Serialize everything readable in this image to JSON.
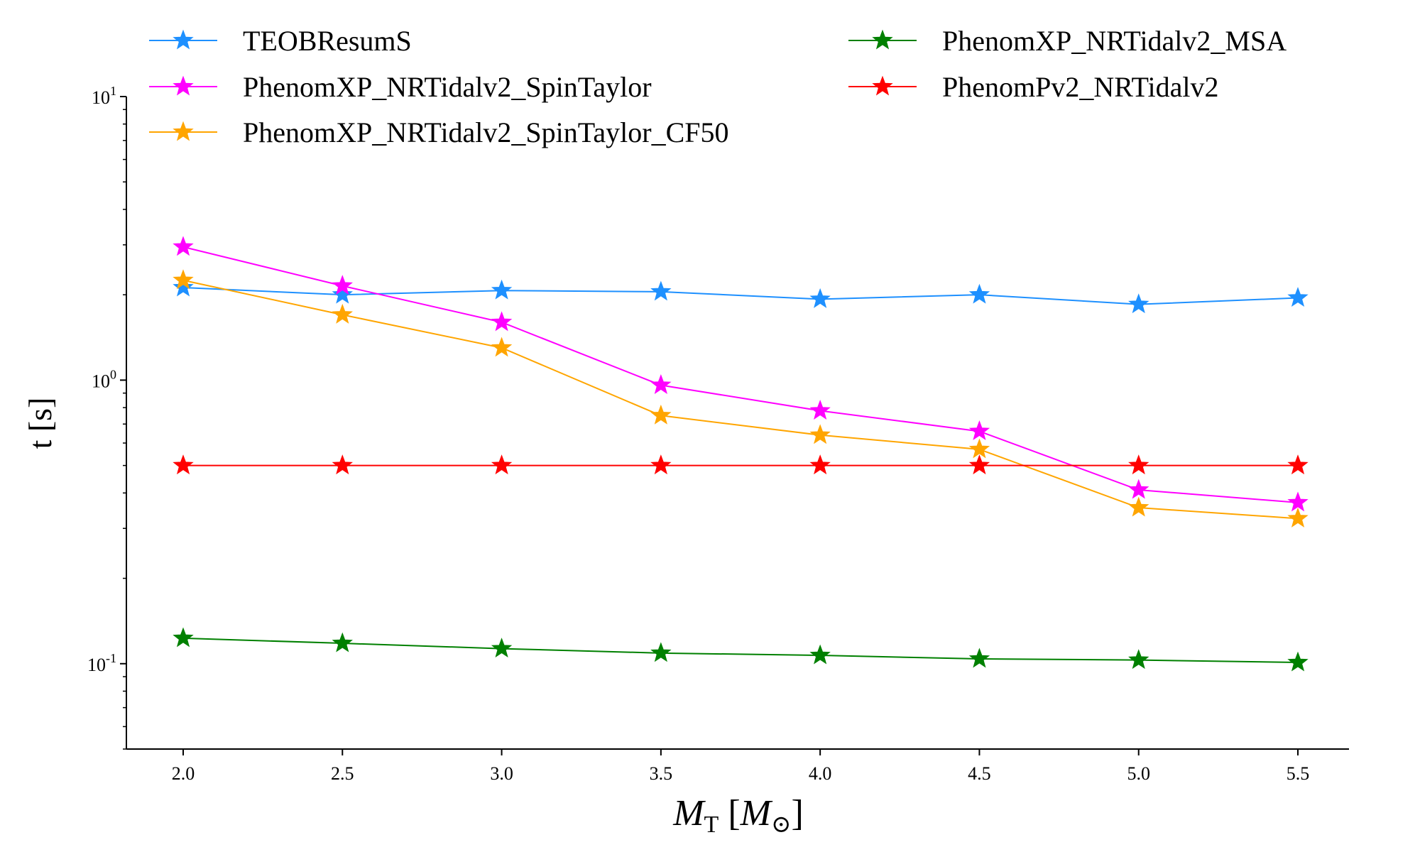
{
  "chart_data": {
    "type": "line",
    "title": "",
    "xlabel": {
      "main": "M",
      "sub": "T",
      "unit_main": "M",
      "unit_sub": "⊙"
    },
    "ylabel": "t [s]",
    "yscale": "log",
    "xlim": [
      1.82,
      5.68
    ],
    "ylim": [
      0.05,
      10
    ],
    "x": [
      2.0,
      2.5,
      3.0,
      3.5,
      4.0,
      4.5,
      5.0,
      5.5
    ],
    "x_ticks": [
      "2.0",
      "2.5",
      "3.0",
      "3.5",
      "4.0",
      "4.5",
      "5.0",
      "5.5"
    ],
    "y_ticks": [
      {
        "value": 10,
        "base": "10",
        "exp": "1"
      },
      {
        "value": 1,
        "base": "10",
        "exp": "0"
      },
      {
        "value": 0.1,
        "base": "10",
        "exp": "-1"
      }
    ],
    "legend_position": "top, two columns",
    "series": [
      {
        "name": "TEOBResumS",
        "color": "#1E90FF",
        "values": [
          2.12,
          2.0,
          2.07,
          2.05,
          1.93,
          2.0,
          1.85,
          1.95
        ]
      },
      {
        "name": "PhenomXP_NRTidalv2_SpinTaylor",
        "color": "#FF00FF",
        "values": [
          2.95,
          2.15,
          1.6,
          0.96,
          0.78,
          0.66,
          0.41,
          0.37
        ]
      },
      {
        "name": "PhenomXP_NRTidalv2_SpinTaylor_CF50",
        "color": "#FFA500",
        "values": [
          2.25,
          1.7,
          1.3,
          0.75,
          0.64,
          0.57,
          0.355,
          0.325
        ]
      },
      {
        "name": "PhenomXP_NRTidalv2_MSA",
        "color": "#008000",
        "values": [
          0.123,
          0.118,
          0.113,
          0.109,
          0.107,
          0.104,
          0.103,
          0.101
        ]
      },
      {
        "name": "PhenomPv2_NRTidalv2",
        "color": "#FF0000",
        "values": [
          0.5,
          0.5,
          0.5,
          0.5,
          0.5,
          0.5,
          0.5,
          0.5
        ]
      }
    ]
  }
}
